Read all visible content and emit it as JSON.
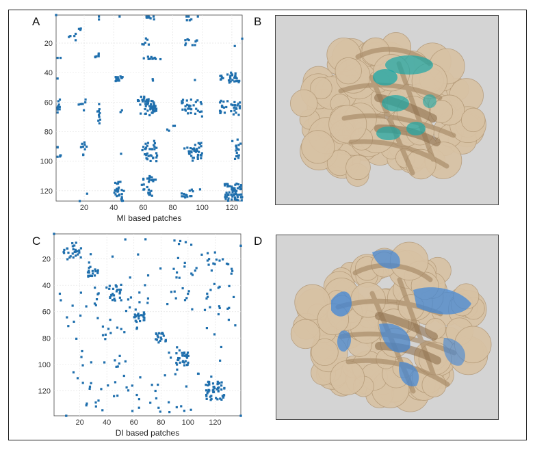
{
  "figure": {
    "labels": {
      "a": "A",
      "b": "B",
      "c": "C",
      "d": "D"
    },
    "colors": {
      "marker": "#1f6fad",
      "surface": "#d8c2a4",
      "ribbon": "#a68866",
      "patch_b": "#1aa6a6",
      "patch_d": "#3f86d8",
      "image_bg": "#d4d4d4"
    },
    "images": {
      "b": "protein-surface-teal-patches",
      "d": "protein-surface-blue-patches"
    }
  },
  "chart_data": [
    {
      "type": "scatter",
      "panel": "A",
      "xlabel": "MI based patches",
      "ylabel": "",
      "xlim": [
        1,
        127
      ],
      "ylim": [
        1,
        127
      ],
      "y_reversed": true,
      "grid": true,
      "xticks": [
        20,
        40,
        60,
        80,
        100,
        120
      ],
      "yticks": [
        20,
        40,
        60,
        80,
        100,
        120
      ],
      "clusters": [
        {
          "cx": 1,
          "cy": 1,
          "hw": 0,
          "hh": 0,
          "n": 1
        },
        {
          "cx": 127,
          "cy": 17,
          "hw": 0,
          "hh": 0,
          "n": 1
        },
        {
          "cx": 30,
          "cy": 2,
          "hw": 0,
          "hh": 0,
          "n": 1
        },
        {
          "cx": 44,
          "cy": 2,
          "hw": 0,
          "hh": 0,
          "n": 1
        },
        {
          "cx": 63,
          "cy": 2,
          "hw": 2,
          "hh": 0,
          "n": 3
        },
        {
          "cx": 67,
          "cy": 2,
          "hw": 0,
          "hh": 0,
          "n": 1
        },
        {
          "cx": 90,
          "cy": 2,
          "hw": 1,
          "hh": 0,
          "n": 2
        },
        {
          "cx": 97,
          "cy": 2,
          "hw": 0,
          "hh": 0,
          "n": 1
        },
        {
          "cx": 16,
          "cy": 12,
          "hw": 3,
          "hh": 3,
          "n": 4
        },
        {
          "cx": 62,
          "cy": 17,
          "hw": 1,
          "hh": 1,
          "n": 2
        },
        {
          "cx": 89,
          "cy": 18,
          "hw": 2,
          "hh": 1,
          "n": 3
        },
        {
          "cx": 96,
          "cy": 19,
          "hw": 1,
          "hh": 1,
          "n": 2
        },
        {
          "cx": 4,
          "cy": 30,
          "hw": 0,
          "hh": 0,
          "n": 1
        },
        {
          "cx": 30,
          "cy": 28,
          "hw": 1,
          "hh": 1,
          "n": 3
        },
        {
          "cx": 66,
          "cy": 30,
          "hw": 3,
          "hh": 1,
          "n": 4
        },
        {
          "cx": 44,
          "cy": 43,
          "hw": 2,
          "hh": 2,
          "n": 7
        },
        {
          "cx": 95,
          "cy": 45,
          "hw": 0,
          "hh": 0,
          "n": 1
        },
        {
          "cx": 121,
          "cy": 42,
          "hw": 4,
          "hh": 2,
          "n": 12
        },
        {
          "cx": 122,
          "cy": 46,
          "hw": 5,
          "hh": 1,
          "n": 10
        },
        {
          "cx": 3,
          "cy": 63,
          "hw": 1,
          "hh": 5,
          "n": 6
        },
        {
          "cx": 20,
          "cy": 62,
          "hw": 1,
          "hh": 4,
          "n": 4
        },
        {
          "cx": 30,
          "cy": 68,
          "hw": 1,
          "hh": 8,
          "n": 6
        },
        {
          "cx": 45,
          "cy": 66,
          "hw": 1,
          "hh": 1,
          "n": 2
        },
        {
          "cx": 65,
          "cy": 63,
          "hw": 4,
          "hh": 5,
          "n": 40
        },
        {
          "cx": 60,
          "cy": 58,
          "hw": 2,
          "hh": 2,
          "n": 5
        },
        {
          "cx": 92,
          "cy": 63,
          "hw": 6,
          "hh": 5,
          "n": 22
        },
        {
          "cx": 118,
          "cy": 64,
          "hw": 8,
          "hh": 5,
          "n": 24
        },
        {
          "cx": 80,
          "cy": 78,
          "hw": 2,
          "hh": 2,
          "n": 2
        },
        {
          "cx": 4,
          "cy": 93,
          "hw": 1,
          "hh": 4,
          "n": 3
        },
        {
          "cx": 20,
          "cy": 92,
          "hw": 2,
          "hh": 5,
          "n": 5
        },
        {
          "cx": 65,
          "cy": 93,
          "hw": 5,
          "hh": 7,
          "n": 26
        },
        {
          "cx": 95,
          "cy": 93,
          "hw": 5,
          "hh": 6,
          "n": 28
        },
        {
          "cx": 122,
          "cy": 93,
          "hw": 3,
          "hh": 7,
          "n": 10
        },
        {
          "cx": 22,
          "cy": 122,
          "hw": 0,
          "hh": 0,
          "n": 1
        },
        {
          "cx": 43,
          "cy": 118,
          "hw": 2,
          "hh": 6,
          "n": 12
        },
        {
          "cx": 64,
          "cy": 118,
          "hw": 4,
          "hh": 7,
          "n": 18
        },
        {
          "cx": 89,
          "cy": 124,
          "hw": 4,
          "hh": 2,
          "n": 6
        },
        {
          "cx": 121,
          "cy": 121,
          "hw": 6,
          "hh": 6,
          "n": 60
        }
      ]
    },
    {
      "type": "scatter",
      "panel": "C",
      "xlabel": "DI based patches",
      "ylabel": "",
      "xlim": [
        1,
        139
      ],
      "ylim": [
        1,
        139
      ],
      "y_reversed": true,
      "grid": true,
      "xticks": [
        20,
        40,
        60,
        80,
        100,
        120
      ],
      "yticks": [
        20,
        40,
        60,
        80,
        100,
        120
      ],
      "clusters": [
        {
          "cx": 1,
          "cy": 1,
          "hw": 0,
          "hh": 0,
          "n": 1
        },
        {
          "cx": 139,
          "cy": 139,
          "hw": 0,
          "hh": 0,
          "n": 1
        },
        {
          "cx": 139,
          "cy": 10,
          "hw": 0,
          "hh": 0,
          "n": 1
        },
        {
          "cx": 10,
          "cy": 139,
          "hw": 0,
          "hh": 0,
          "n": 1
        },
        {
          "cx": 15,
          "cy": 14,
          "hw": 7,
          "hh": 7,
          "n": 18
        },
        {
          "cx": 30,
          "cy": 30,
          "hw": 4,
          "hh": 4,
          "n": 10
        },
        {
          "cx": 45,
          "cy": 46,
          "hw": 6,
          "hh": 6,
          "n": 16
        },
        {
          "cx": 64,
          "cy": 64,
          "hw": 4,
          "hh": 4,
          "n": 14
        },
        {
          "cx": 80,
          "cy": 80,
          "hw": 4,
          "hh": 4,
          "n": 10
        },
        {
          "cx": 96,
          "cy": 96,
          "hw": 5,
          "hh": 5,
          "n": 20
        },
        {
          "cx": 120,
          "cy": 120,
          "hw": 7,
          "hh": 7,
          "n": 45
        },
        {
          "cx": 70,
          "cy": 35,
          "hw": 50,
          "hh": 30,
          "n": 40
        },
        {
          "cx": 35,
          "cy": 85,
          "hw": 30,
          "hh": 40,
          "n": 40
        },
        {
          "cx": 110,
          "cy": 70,
          "hw": 25,
          "hh": 50,
          "n": 25
        },
        {
          "cx": 60,
          "cy": 125,
          "hw": 40,
          "hh": 12,
          "n": 18
        },
        {
          "cx": 125,
          "cy": 50,
          "hw": 12,
          "hh": 30,
          "n": 12
        }
      ]
    }
  ]
}
